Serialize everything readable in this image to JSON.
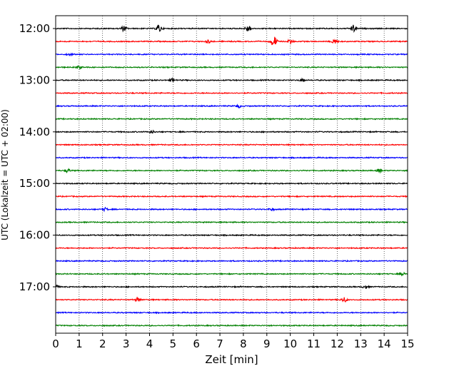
{
  "chart_data": {
    "type": "line",
    "title": "",
    "xlabel": "Zeit  [min]",
    "ylabel": "UTC (Lokalzeit = UTC + 02:00)",
    "xlim": [
      0,
      15
    ],
    "x_ticks": [
      "0",
      "1",
      "2",
      "3",
      "4",
      "5",
      "6",
      "7",
      "8",
      "9",
      "10",
      "11",
      "12",
      "13",
      "14",
      "15"
    ],
    "y_ticks": [
      "12:00",
      "13:00",
      "14:00",
      "15:00",
      "16:00",
      "17:00"
    ],
    "grid": "vertical dotted",
    "trace_interval_minutes": 15,
    "start_time": "12:00",
    "trace_count": 24,
    "colors": [
      "#000000",
      "#ff0000",
      "#0000ff",
      "#008000"
    ],
    "events": [
      {
        "trace": 0,
        "x": 2.9,
        "amp": 0.8
      },
      {
        "trace": 0,
        "x": 4.4,
        "amp": 1.3
      },
      {
        "trace": 0,
        "x": 8.2,
        "amp": 1.2
      },
      {
        "trace": 0,
        "x": 12.7,
        "amp": 1.2
      },
      {
        "trace": 1,
        "x": 6.5,
        "amp": 0.5
      },
      {
        "trace": 1,
        "x": 9.3,
        "amp": 1.9
      },
      {
        "trace": 1,
        "x": 10.0,
        "amp": 0.6
      },
      {
        "trace": 1,
        "x": 11.9,
        "amp": 0.9
      },
      {
        "trace": 2,
        "x": 0.6,
        "amp": 0.4
      },
      {
        "trace": 3,
        "x": 1.0,
        "amp": 0.5
      },
      {
        "trace": 4,
        "x": 5.0,
        "amp": 0.6
      },
      {
        "trace": 4,
        "x": 10.5,
        "amp": 0.4
      },
      {
        "trace": 6,
        "x": 7.8,
        "amp": 0.5
      },
      {
        "trace": 8,
        "x": 4.1,
        "amp": 0.4
      },
      {
        "trace": 11,
        "x": 0.5,
        "amp": 0.6
      },
      {
        "trace": 11,
        "x": 13.8,
        "amp": 0.5
      },
      {
        "trace": 14,
        "x": 2.1,
        "amp": 0.5
      },
      {
        "trace": 14,
        "x": 9.2,
        "amp": 0.4
      },
      {
        "trace": 19,
        "x": 14.8,
        "amp": 0.5
      },
      {
        "trace": 20,
        "x": 0.0,
        "amp": 0.6
      },
      {
        "trace": 20,
        "x": 13.2,
        "amp": 0.5
      },
      {
        "trace": 21,
        "x": 3.5,
        "amp": 0.6
      },
      {
        "trace": 21,
        "x": 12.3,
        "amp": 0.8
      }
    ]
  }
}
